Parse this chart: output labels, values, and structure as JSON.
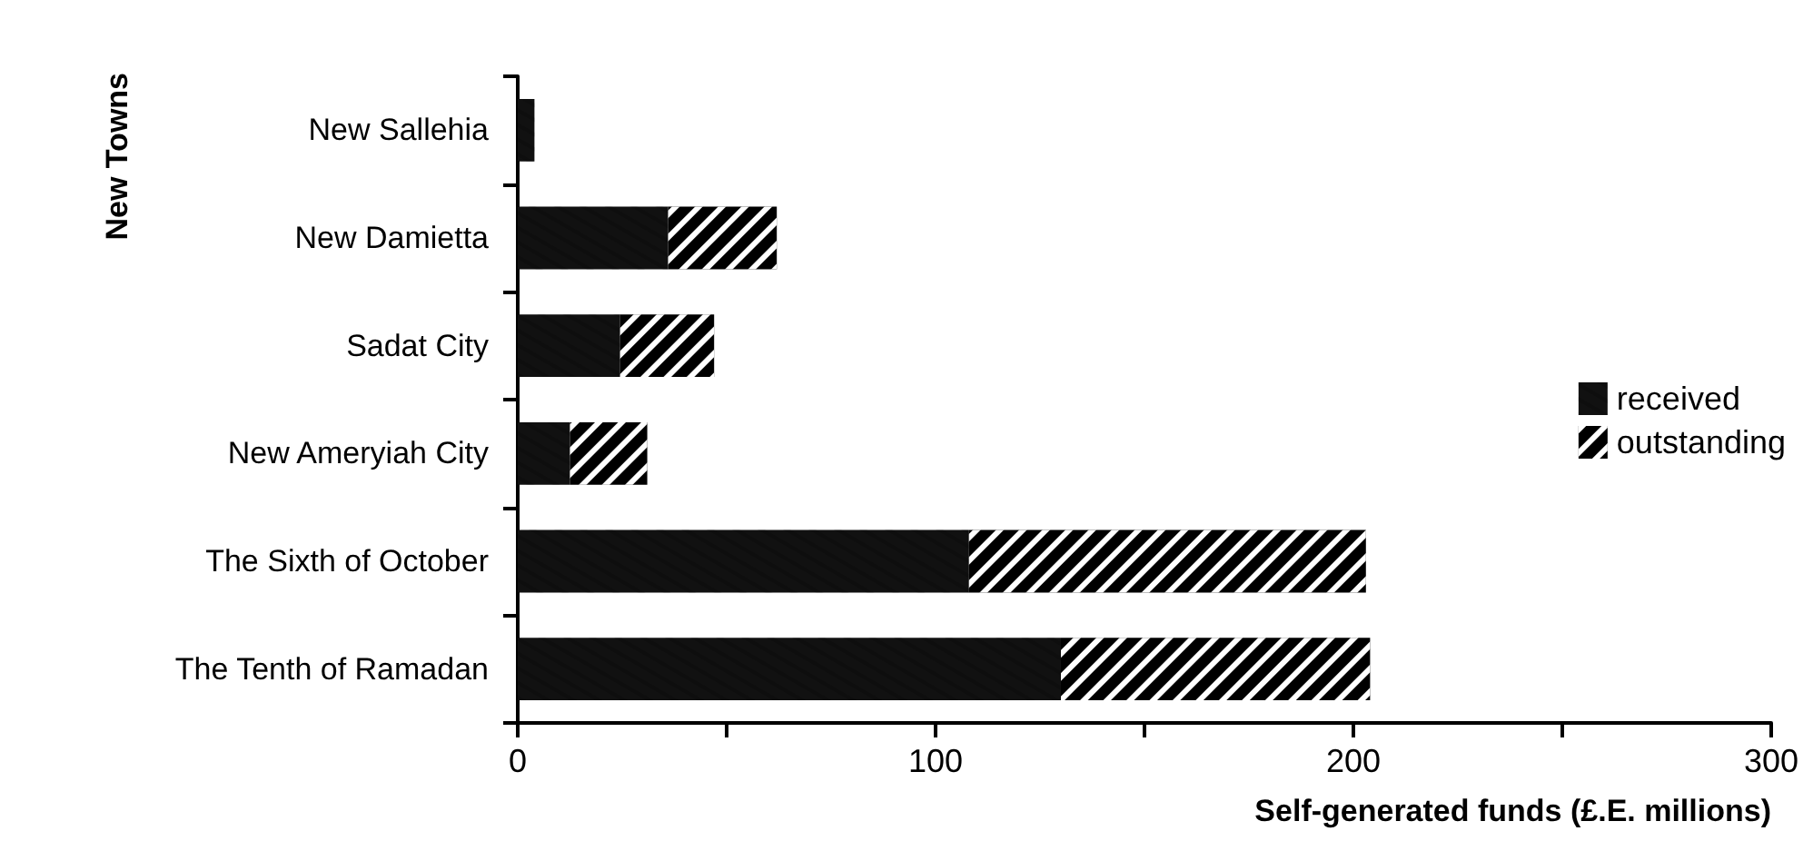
{
  "chart_data": {
    "type": "bar",
    "orientation": "horizontal",
    "stacked": true,
    "xlabel": "Self-generated funds (£.E. millions)",
    "ylabel": "New Towns",
    "categories": [
      "New Sallehia",
      "New Damietta",
      "Sadat City",
      "New Ameryiah City",
      "The Sixth of October",
      "The Tenth of Ramadan"
    ],
    "series": [
      {
        "name": "received",
        "color": "#111111",
        "values": [
          4,
          36,
          24.5,
          12.5,
          108,
          130
        ]
      },
      {
        "name": "outstanding",
        "color": "#000000",
        "values": [
          0,
          26,
          22.5,
          18.5,
          95,
          74
        ]
      }
    ],
    "xlim": [
      0,
      300
    ],
    "xticks": [
      0,
      {
        "value": 50,
        "label": null
      },
      100,
      {
        "value": 150,
        "label": null
      },
      200,
      {
        "value": 250,
        "label": null
      },
      300
    ],
    "grid": false,
    "legend": "right"
  }
}
